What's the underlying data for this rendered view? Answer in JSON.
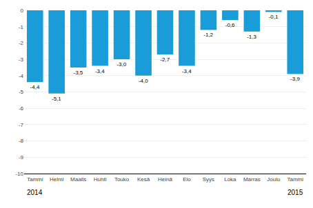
{
  "chart_data": {
    "type": "bar",
    "categories": [
      "Tammi",
      "Helmi",
      "Maalis",
      "Huhti",
      "Touko",
      "Kesä",
      "Heinä",
      "Elo",
      "Syys",
      "Loka",
      "Marras",
      "Joulu",
      "Tammi"
    ],
    "values": [
      -4.4,
      -5.1,
      -3.5,
      -3.4,
      -3.0,
      -4.0,
      -2.7,
      -3.4,
      -1.2,
      -0.6,
      -1.3,
      -0.1,
      -3.9
    ],
    "value_labels": [
      "-4,4",
      "-5,1",
      "-3,5",
      "-3,4",
      "-3,0",
      "-4,0",
      "-2,7",
      "-3,4",
      "-1,2",
      "-0,6",
      "-1,3",
      "-0,1",
      "-3,9"
    ],
    "data_labels": true,
    "color": "#1a9cd8",
    "ylim": [
      -10,
      0
    ],
    "yticks": [
      0,
      -1,
      -2,
      -3,
      -4,
      -5,
      -6,
      -7,
      -8,
      -9,
      -10
    ],
    "grid": true,
    "annotations": [
      {
        "text": "2014",
        "x": 0
      },
      {
        "text": "2015",
        "x": 12
      }
    ]
  }
}
